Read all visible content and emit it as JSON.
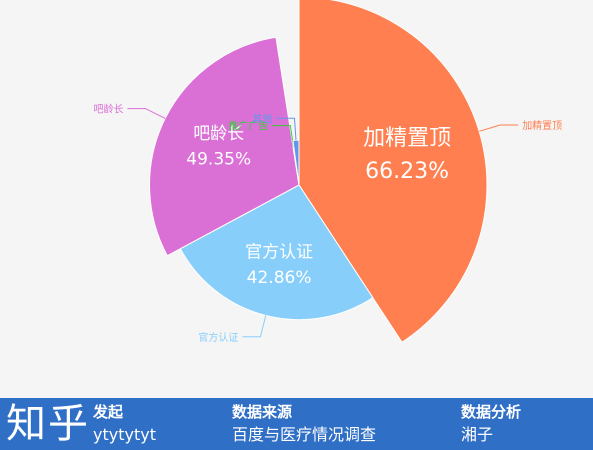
{
  "chart_data": {
    "type": "pie",
    "variant": "rose",
    "slices": [
      {
        "name": "加精置顶",
        "value": 66.23,
        "label": "66.23%",
        "color": "#ff7f50"
      },
      {
        "name": "官方认证",
        "value": 42.86,
        "label": "42.86%",
        "color": "#87cefa"
      },
      {
        "name": "吧龄长",
        "value": 49.35,
        "label": "49.35%",
        "color": "#da70d6"
      },
      {
        "name": "推广广告",
        "value": 0.5,
        "label": "",
        "color": "#32cd32"
      },
      {
        "name": "其他",
        "value": 3.5,
        "label": "",
        "color": "#6495ed"
      }
    ]
  },
  "footer": {
    "brand": "知乎",
    "col1": {
      "heading": "发起",
      "value": "ytytytyt"
    },
    "col2": {
      "heading": "数据来源",
      "value": "百度与医疗情况调查"
    },
    "col3": {
      "heading": "数据分析",
      "value": "湘子"
    }
  }
}
